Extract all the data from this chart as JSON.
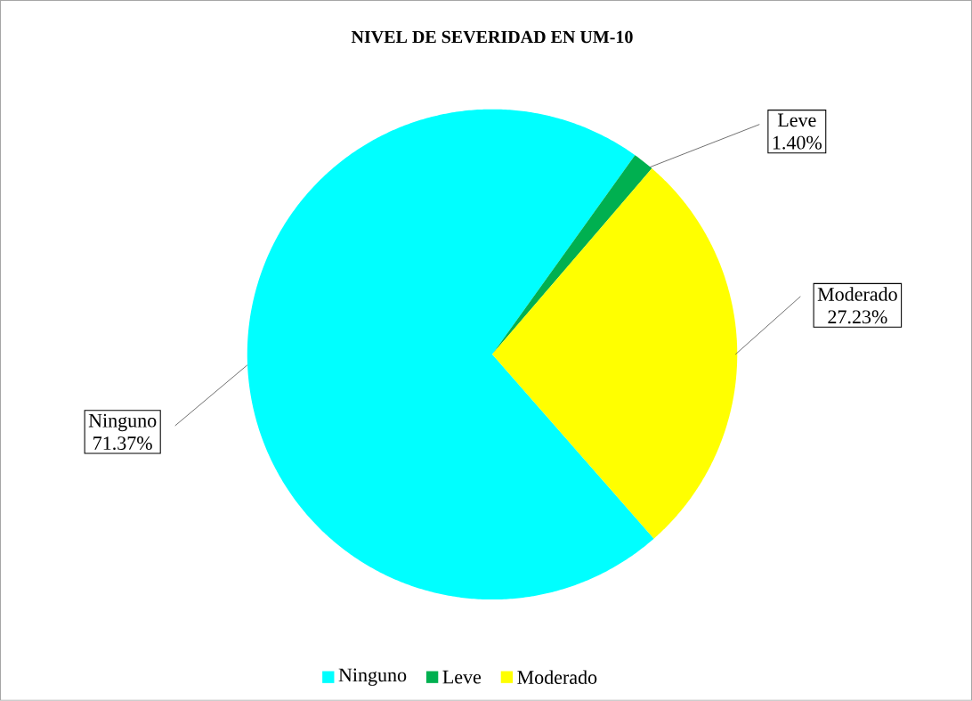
{
  "chart_data": {
    "type": "pie",
    "title": "NIVEL DE SEVERIDAD  EN UM-10",
    "categories": [
      "Ninguno",
      "Leve",
      "Moderado"
    ],
    "values": [
      71.37,
      1.4,
      27.23
    ],
    "value_labels": [
      "71.37%",
      "1.40%",
      "27.23%"
    ],
    "colors": [
      "#00ffff",
      "#00b050",
      "#ffff00"
    ],
    "legend": "bottom"
  }
}
